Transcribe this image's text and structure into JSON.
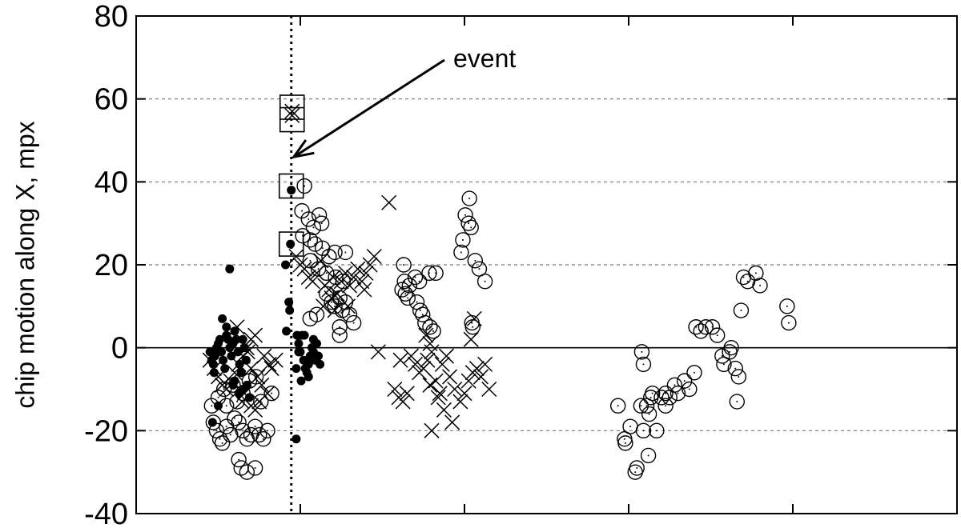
{
  "chart_data": {
    "type": "scatter",
    "title": "",
    "xlabel": "",
    "ylabel": "chip motion along X, mpx",
    "ylim": [
      -40,
      80
    ],
    "xlim": [
      0,
      100
    ],
    "y_ticks": [
      "80",
      "60",
      "40",
      "20",
      "0",
      "-20",
      "-40"
    ],
    "y_tick_values": [
      80,
      60,
      40,
      20,
      0,
      -20,
      -40
    ],
    "x_ticks_unlabeled": [
      20,
      40,
      60,
      80
    ],
    "grid_y": [
      60,
      40,
      20,
      -20
    ],
    "zero_line": 0,
    "event_x": 18.9,
    "annotation": {
      "text": "event",
      "arrow_tip": [
        19.2,
        46
      ]
    },
    "series": [
      {
        "marker": "filled-dot",
        "points": [
          [
            9,
            -1
          ],
          [
            9.2,
            -3
          ],
          [
            9.4,
            -4
          ],
          [
            9.6,
            -2
          ],
          [
            9.8,
            0
          ],
          [
            10,
            1
          ],
          [
            10.2,
            2
          ],
          [
            10.4,
            -1
          ],
          [
            10.6,
            -3
          ],
          [
            10.8,
            -5
          ],
          [
            11,
            3
          ],
          [
            11.2,
            2
          ],
          [
            11.4,
            0
          ],
          [
            11.6,
            -2
          ],
          [
            11.8,
            1
          ],
          [
            12,
            4
          ],
          [
            12.2,
            2
          ],
          [
            12.4,
            -1
          ],
          [
            12.6,
            -4
          ],
          [
            12.8,
            -6
          ],
          [
            13,
            2
          ],
          [
            13.2,
            0
          ],
          [
            13.4,
            -3
          ],
          [
            9.5,
            -6
          ],
          [
            10,
            -14
          ],
          [
            9.3,
            -18
          ],
          [
            10.5,
            7
          ],
          [
            11,
            5
          ],
          [
            11.4,
            19
          ],
          [
            12,
            -8
          ],
          [
            11.8,
            -9
          ],
          [
            13,
            -10
          ],
          [
            12.5,
            -11
          ],
          [
            13.5,
            -9
          ],
          [
            13.8,
            -12
          ],
          [
            18.2,
            20
          ],
          [
            18.3,
            4
          ],
          [
            18.6,
            11
          ],
          [
            18.7,
            9
          ],
          [
            18.8,
            25
          ],
          [
            18.9,
            38
          ],
          [
            19.5,
            -22
          ],
          [
            19.6,
            3
          ],
          [
            19.8,
            1
          ],
          [
            20,
            -1
          ],
          [
            20.2,
            3
          ],
          [
            20.4,
            -3
          ],
          [
            20.6,
            -5
          ],
          [
            20.8,
            -6
          ],
          [
            21,
            -4
          ],
          [
            21.2,
            -2
          ],
          [
            21.4,
            0
          ],
          [
            21.6,
            -1
          ],
          [
            21.8,
            -3
          ],
          [
            19.5,
            -5
          ],
          [
            20.1,
            -8
          ],
          [
            21,
            -7
          ],
          [
            22,
            1
          ],
          [
            22.2,
            -2
          ],
          [
            22.4,
            -4
          ],
          [
            19.8,
            -1
          ],
          [
            20.5,
            3
          ],
          [
            21.6,
            2
          ]
        ]
      },
      {
        "marker": "cross",
        "points": [
          [
            9,
            -3
          ],
          [
            9.5,
            -5
          ],
          [
            10,
            -7
          ],
          [
            10.5,
            -9
          ],
          [
            11,
            -10
          ],
          [
            11.5,
            -8
          ],
          [
            12,
            -6
          ],
          [
            12.5,
            -4
          ],
          [
            13,
            -2
          ],
          [
            13.5,
            0
          ],
          [
            14,
            2
          ],
          [
            14.5,
            3
          ],
          [
            12.3,
            5
          ],
          [
            11.8,
            4
          ],
          [
            13.2,
            -11
          ],
          [
            12.9,
            -13
          ],
          [
            14,
            -14
          ],
          [
            15,
            -13
          ],
          [
            16,
            -11
          ],
          [
            14.5,
            -15
          ],
          [
            15.6,
            -2
          ],
          [
            16.2,
            -4
          ],
          [
            14.8,
            -7
          ],
          [
            16.5,
            -5
          ],
          [
            17,
            -3
          ],
          [
            14,
            -5
          ],
          [
            15.3,
            -9
          ],
          [
            13.6,
            -1
          ],
          [
            19,
            57
          ],
          [
            19,
            56
          ],
          [
            19.5,
            22
          ],
          [
            20,
            20
          ],
          [
            20.5,
            19
          ],
          [
            21,
            17
          ],
          [
            21.5,
            16
          ],
          [
            22,
            18
          ],
          [
            22.5,
            21
          ],
          [
            23,
            15
          ],
          [
            23.5,
            14
          ],
          [
            24,
            17
          ],
          [
            24.5,
            13
          ],
          [
            25,
            16
          ],
          [
            25.5,
            18
          ],
          [
            26,
            15
          ],
          [
            26.5,
            17
          ],
          [
            27,
            19
          ],
          [
            27.5,
            16
          ],
          [
            28,
            18
          ],
          [
            28.5,
            20
          ],
          [
            29,
            22
          ],
          [
            23.8,
            12
          ],
          [
            22.8,
            10
          ],
          [
            24.2,
            9
          ],
          [
            25.8,
            10
          ],
          [
            27.8,
            14
          ],
          [
            29.5,
            -1
          ],
          [
            30.8,
            35
          ],
          [
            31.5,
            -10
          ],
          [
            32,
            -12
          ],
          [
            32.5,
            -13
          ],
          [
            33,
            -11
          ],
          [
            32.2,
            -3
          ],
          [
            33.5,
            -2
          ],
          [
            34,
            -4
          ],
          [
            34.5,
            -6
          ],
          [
            35,
            -5
          ],
          [
            35.5,
            -3
          ],
          [
            36,
            -1
          ],
          [
            36.5,
            -8
          ],
          [
            37,
            -11
          ],
          [
            37.5,
            -15
          ],
          [
            36,
            -20
          ],
          [
            38.5,
            -18
          ],
          [
            35.8,
            1
          ],
          [
            35.3,
            3
          ],
          [
            37.3,
            -4
          ],
          [
            38.2,
            -7
          ],
          [
            38.8,
            -10
          ],
          [
            36.8,
            -12
          ],
          [
            35.8,
            -9
          ],
          [
            37.8,
            -2
          ],
          [
            39.5,
            -13
          ],
          [
            40,
            -11
          ],
          [
            40.5,
            -8
          ],
          [
            41,
            -6
          ],
          [
            41.5,
            -5
          ],
          [
            42,
            -7
          ],
          [
            42.5,
            -4
          ],
          [
            43,
            -10
          ],
          [
            40.8,
            2
          ],
          [
            41.2,
            7
          ]
        ]
      },
      {
        "marker": "open-circle",
        "points": [
          [
            9.2,
            -14
          ],
          [
            9.4,
            -18
          ],
          [
            9.8,
            -20
          ],
          [
            10.2,
            -22
          ],
          [
            10.5,
            -23
          ],
          [
            11,
            -19
          ],
          [
            11.5,
            -21
          ],
          [
            12,
            -17
          ],
          [
            12.5,
            -18
          ],
          [
            13,
            -20
          ],
          [
            13.5,
            -22
          ],
          [
            14,
            -21
          ],
          [
            14.5,
            -19
          ],
          [
            15,
            -21
          ],
          [
            15.5,
            -22
          ],
          [
            16,
            -20
          ],
          [
            12.5,
            -27
          ],
          [
            12.8,
            -29
          ],
          [
            13.5,
            -30
          ],
          [
            14.5,
            -29
          ],
          [
            10,
            -12
          ],
          [
            11,
            -14
          ],
          [
            10.7,
            -10
          ],
          [
            11.8,
            -9
          ],
          [
            12.3,
            -13
          ],
          [
            13,
            -11
          ],
          [
            13.8,
            -8
          ],
          [
            14.6,
            -7
          ],
          [
            15.2,
            -13
          ],
          [
            16.5,
            -11
          ],
          [
            20.5,
            39
          ],
          [
            20.2,
            33
          ],
          [
            21,
            31
          ],
          [
            21.6,
            29
          ],
          [
            22.3,
            32
          ],
          [
            22.6,
            30
          ],
          [
            20.3,
            27
          ],
          [
            21.2,
            26
          ],
          [
            21.8,
            25
          ],
          [
            22.7,
            24
          ],
          [
            23.5,
            22
          ],
          [
            24.2,
            23
          ],
          [
            25.5,
            23
          ],
          [
            21.2,
            21
          ],
          [
            22.2,
            19
          ],
          [
            23.2,
            18
          ],
          [
            24.3,
            17
          ],
          [
            25.2,
            16
          ],
          [
            23.2,
            13
          ],
          [
            23.8,
            11
          ],
          [
            24.2,
            10
          ],
          [
            25.1,
            9
          ],
          [
            24.8,
            12
          ],
          [
            25.5,
            11
          ],
          [
            22,
            8
          ],
          [
            21.2,
            7
          ],
          [
            24.8,
            5
          ],
          [
            26,
            8
          ],
          [
            26.5,
            6
          ],
          [
            24.8,
            3
          ],
          [
            32.6,
            20
          ],
          [
            32.7,
            16
          ],
          [
            32.4,
            14
          ],
          [
            32.8,
            13
          ],
          [
            33.1,
            12
          ],
          [
            33.3,
            15
          ],
          [
            34,
            17
          ],
          [
            34.5,
            16
          ],
          [
            34.2,
            11
          ],
          [
            34.6,
            9
          ],
          [
            34.9,
            8
          ],
          [
            35.2,
            6
          ],
          [
            35.8,
            5
          ],
          [
            35.7,
            18
          ],
          [
            36.5,
            18
          ],
          [
            36.2,
            4
          ],
          [
            39.6,
            23
          ],
          [
            39.8,
            26
          ],
          [
            40.5,
            30
          ],
          [
            40.8,
            29
          ],
          [
            40.1,
            32
          ],
          [
            40.6,
            36
          ],
          [
            41.3,
            21
          ],
          [
            41.8,
            19
          ],
          [
            42.5,
            16
          ],
          [
            41,
            5
          ],
          [
            40.9,
            6
          ],
          [
            58.7,
            -14
          ],
          [
            59.5,
            -22
          ],
          [
            59.6,
            -23
          ],
          [
            60.2,
            -19
          ],
          [
            60.8,
            -30
          ],
          [
            61,
            -29
          ],
          [
            61.5,
            -14
          ],
          [
            61.8,
            -20
          ],
          [
            62.5,
            -16
          ],
          [
            62.2,
            -14
          ],
          [
            62.7,
            -12
          ],
          [
            62.9,
            -11
          ],
          [
            62.4,
            -26
          ],
          [
            63.4,
            -20
          ],
          [
            64,
            -12
          ],
          [
            64.5,
            -11
          ],
          [
            64.5,
            -14
          ],
          [
            65,
            -12
          ],
          [
            65.6,
            -9
          ],
          [
            66,
            -11
          ],
          [
            66.8,
            -8
          ],
          [
            67.4,
            -10
          ],
          [
            68,
            -6
          ],
          [
            61.6,
            -1
          ],
          [
            61.8,
            -4
          ],
          [
            68.2,
            5
          ],
          [
            68.8,
            4
          ],
          [
            69.4,
            5
          ],
          [
            70.2,
            5
          ],
          [
            70.8,
            3
          ],
          [
            71.4,
            -2
          ],
          [
            71.6,
            -4
          ],
          [
            72.3,
            -1
          ],
          [
            72.5,
            0
          ],
          [
            73,
            -5
          ],
          [
            73.4,
            -7
          ],
          [
            73.2,
            -13
          ],
          [
            73.7,
            9
          ],
          [
            74,
            17
          ],
          [
            74.5,
            16
          ],
          [
            75.5,
            18
          ],
          [
            76,
            15
          ],
          [
            79.3,
            10
          ],
          [
            79.5,
            6
          ]
        ]
      },
      {
        "marker": "open-square",
        "points": [
          [
            19,
            58
          ],
          [
            19,
            55
          ],
          [
            18.9,
            39
          ],
          [
            18.9,
            25
          ]
        ]
      }
    ]
  }
}
